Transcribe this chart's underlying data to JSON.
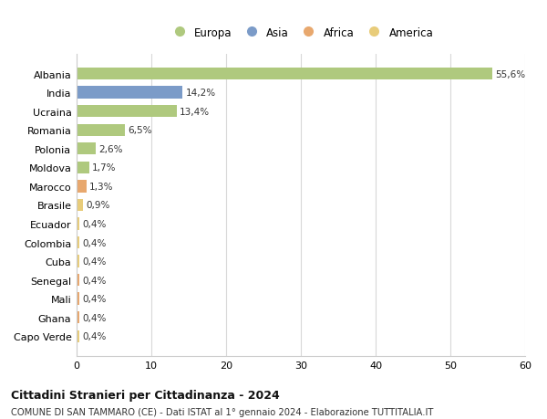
{
  "categories": [
    "Albania",
    "India",
    "Ucraina",
    "Romania",
    "Polonia",
    "Moldova",
    "Marocco",
    "Brasile",
    "Ecuador",
    "Colombia",
    "Cuba",
    "Senegal",
    "Mali",
    "Ghana",
    "Capo Verde"
  ],
  "values": [
    55.6,
    14.2,
    13.4,
    6.5,
    2.6,
    1.7,
    1.3,
    0.9,
    0.4,
    0.4,
    0.4,
    0.4,
    0.4,
    0.4,
    0.4
  ],
  "labels": [
    "55,6%",
    "14,2%",
    "13,4%",
    "6,5%",
    "2,6%",
    "1,7%",
    "1,3%",
    "0,9%",
    "0,4%",
    "0,4%",
    "0,4%",
    "0,4%",
    "0,4%",
    "0,4%",
    "0,4%"
  ],
  "continent": [
    "Europa",
    "Asia",
    "Europa",
    "Europa",
    "Europa",
    "Europa",
    "Africa",
    "America",
    "America",
    "America",
    "America",
    "Africa",
    "Africa",
    "Africa",
    "America"
  ],
  "colors": {
    "Europa": "#afc97e",
    "Asia": "#7b9bc8",
    "Africa": "#e8a86e",
    "America": "#e8cc7a"
  },
  "legend_order": [
    "Europa",
    "Asia",
    "Africa",
    "America"
  ],
  "xlim": [
    0,
    60
  ],
  "xticks": [
    0,
    10,
    20,
    30,
    40,
    50,
    60
  ],
  "title": "Cittadini Stranieri per Cittadinanza - 2024",
  "subtitle": "COMUNE DI SAN TAMMARO (CE) - Dati ISTAT al 1° gennaio 2024 - Elaborazione TUTTITALIA.IT",
  "background_color": "#ffffff",
  "grid_color": "#d8d8d8"
}
